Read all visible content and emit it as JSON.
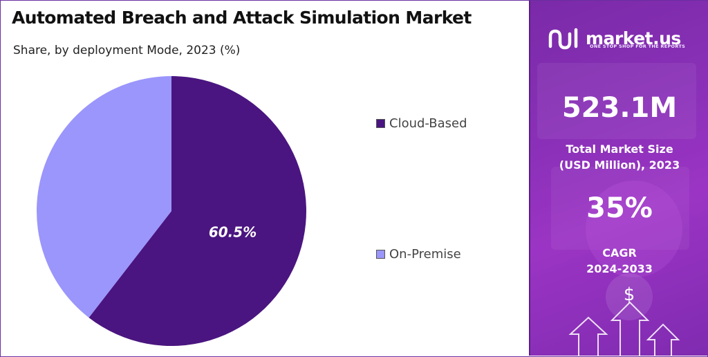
{
  "header": {
    "title": "Automated Breach and Attack Simulation Market",
    "subtitle": "Share, by deployment Mode, 2023 (%)"
  },
  "chart_data": {
    "type": "pie",
    "title": "Automated Breach and Attack Simulation Market",
    "subtitle": "Share, by deployment Mode, 2023 (%)",
    "categories": [
      "Cloud-Based",
      "On-Premise"
    ],
    "values": [
      60.5,
      39.5
    ],
    "data_labels": [
      "60.5%",
      ""
    ],
    "colors": [
      "#4a1580",
      "#9b96fb"
    ],
    "legend_position": "right",
    "start_angle_deg": 0,
    "direction": "clockwise"
  },
  "legend": {
    "items": [
      {
        "label": "Cloud-Based",
        "color": "#4a1580"
      },
      {
        "label": "On-Premise",
        "color": "#9b96fb"
      }
    ]
  },
  "sidebar": {
    "brand": {
      "name": "market.us",
      "tagline": "ONE STOP SHOP FOR THE REPORTS",
      "icon": "market-us-logo-icon"
    },
    "market_size_value": "523.1M",
    "market_size_label_line1": "Total Market Size",
    "market_size_label_line2": "(USD Million), 2023",
    "cagr_value": "35%",
    "cagr_label_line1": "CAGR",
    "cagr_label_line2": "2024-2033",
    "background_color": "#8a30b8",
    "decor_icons": [
      "dollar-icon",
      "up-arrow-icon"
    ]
  }
}
